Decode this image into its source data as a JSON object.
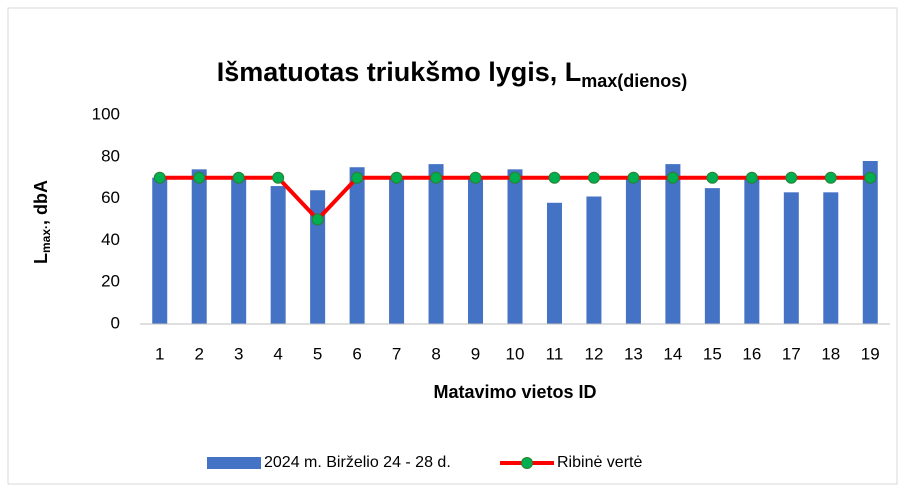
{
  "chart_data": {
    "type": "bar_line",
    "title": "Išmatuotas triukšmo lygis, L",
    "title_subscript": "max(dienos)",
    "ylabel": {
      "main": "L",
      "sub": "max·",
      "rest": ", dbA"
    },
    "xlabel": "Matavimo vietos ID",
    "categories": [
      "1",
      "2",
      "3",
      "4",
      "5",
      "6",
      "7",
      "8",
      "9",
      "10",
      "11",
      "12",
      "13",
      "14",
      "15",
      "16",
      "17",
      "18",
      "19"
    ],
    "series": [
      {
        "name": "2024 m. Birželio 24 - 28 d.",
        "type": "bar",
        "color": "#4472c4",
        "values": [
          70,
          74,
          70,
          66,
          64,
          75,
          70,
          76.5,
          70,
          74,
          58,
          61,
          70,
          76.5,
          65,
          70,
          63,
          63,
          78
        ]
      },
      {
        "name": "Ribinė vertė",
        "type": "line",
        "color": "#ff0000",
        "marker_color": "#00b050",
        "values": [
          70,
          70,
          70,
          70,
          50,
          70,
          70,
          70,
          70,
          70,
          70,
          70,
          70,
          70,
          70,
          70,
          70,
          70,
          70
        ]
      }
    ],
    "ylim": [
      0,
      100
    ],
    "yticks": [
      0,
      20,
      40,
      60,
      80,
      100
    ],
    "grid": false,
    "legend": "bottom"
  }
}
